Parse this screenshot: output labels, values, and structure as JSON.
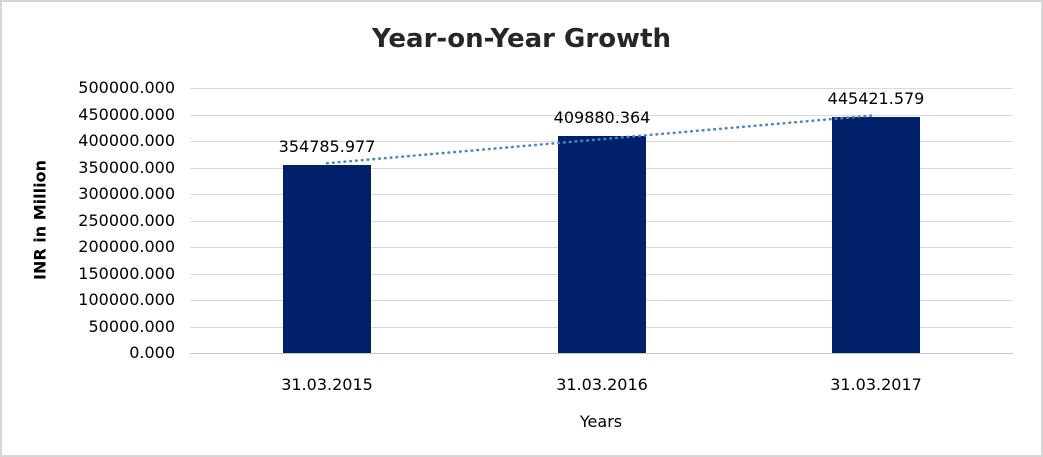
{
  "frame": {
    "background": "#ffffff",
    "border_color": "#d6d6d6"
  },
  "chart_data": {
    "type": "bar",
    "title": "Year-on-Year Growth",
    "categories": [
      "31.03.2015",
      "31.03.2016",
      "31.03.2017"
    ],
    "values": [
      354785.977,
      409880.364,
      445421.579
    ],
    "data_labels": [
      "354785.977",
      "409880.364",
      "445421.579"
    ],
    "xlabel": "Years",
    "ylabel": "INR in Million",
    "ylim": [
      0,
      500000
    ],
    "ytick_step": 50000,
    "ytick_labels": [
      "500000.000",
      "450000.000",
      "400000.000",
      "350000.000",
      "300000.000",
      "250000.000",
      "200000.000",
      "150000.000",
      "100000.000",
      "50000.000",
      "0.000"
    ],
    "grid": true,
    "legend_position": "none",
    "bar_color": "#002169",
    "gridline_color": "#d9d9d9",
    "axis_line_color": "#c6c6c6",
    "title_color": "#262626",
    "label_color": "#000000",
    "trendline": {
      "type": "linear",
      "style": "dotted",
      "color": "#4f81cb",
      "span": "first-to-last-category"
    }
  }
}
